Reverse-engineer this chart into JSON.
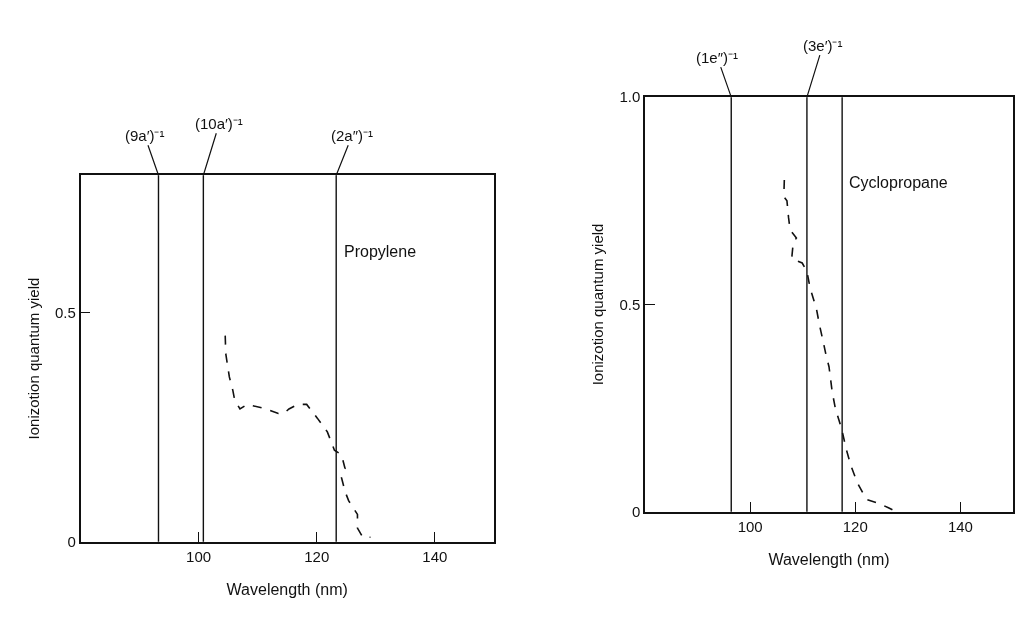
{
  "chart_data": [
    {
      "type": "line",
      "xlabel": "Wavelength (nm)",
      "ylabel": "Ionizotion quantum yield",
      "annotations": [
        "Propylene"
      ],
      "xlim": [
        80,
        150
      ],
      "ylim": [
        0,
        0.8
      ],
      "xticks": [
        100,
        120,
        140
      ],
      "yticks": [
        0,
        0.5
      ],
      "line_style": "dashed",
      "marker": "none",
      "ref_lines": [
        {
          "axis": "x",
          "value": 93.2,
          "label": "(9a′)⁻¹",
          "color": "#111111"
        },
        {
          "axis": "x",
          "value": 100.8,
          "label": "(10a′)⁻¹",
          "color": "#111111"
        },
        {
          "axis": "x",
          "value": 123.3,
          "label": "(2a″)⁻¹",
          "color": "#111111"
        }
      ],
      "series": [
        {
          "color": "#111111",
          "x": [
            104.5,
            104.6,
            105.2,
            105.8,
            106.1,
            107.0,
            108.2,
            111.5,
            113.5,
            114.4,
            115.3,
            116.8,
            118.3,
            120.1,
            121.8,
            122.4,
            123.0,
            124.2,
            124.8,
            124.2,
            124.8,
            125.4,
            126.9,
            126.9,
            127.8,
            129.1
          ],
          "values": [
            0.45,
            0.41,
            0.36,
            0.33,
            0.31,
            0.29,
            0.3,
            0.29,
            0.28,
            0.28,
            0.29,
            0.3,
            0.3,
            0.27,
            0.24,
            0.22,
            0.2,
            0.19,
            0.16,
            0.14,
            0.11,
            0.09,
            0.06,
            0.03,
            0.01,
            0.01
          ]
        }
      ]
    },
    {
      "type": "line",
      "xlabel": "Wavelength (nm)",
      "ylabel": "Ionizotion quantum yield",
      "annotations": [
        "Cyclopropane"
      ],
      "xlim": [
        80,
        150
      ],
      "ylim": [
        0,
        1.0
      ],
      "xticks": [
        100,
        120,
        140
      ],
      "yticks": [
        0,
        0.5,
        {
          "value": 1.0,
          "label": "1.0"
        }
      ],
      "line_style": "dashed",
      "marker": "none",
      "ref_lines": [
        {
          "axis": "x",
          "value": 96.4,
          "label": "(1e″)⁻¹",
          "color": "#111111"
        },
        {
          "axis": "x",
          "value": 110.8,
          "label": "(3e′)⁻¹",
          "color": "#111111"
        },
        {
          "axis": "x",
          "value": 117.5,
          "color": "#111111"
        }
      ],
      "series": [
        {
          "color": "#111111",
          "x": [
            106.5,
            106.4,
            107.0,
            107.3,
            107.6,
            108.8,
            108.2,
            107.9,
            109.9,
            110.8,
            111.4,
            112.6,
            113.2,
            113.9,
            114.4,
            115.0,
            115.6,
            116.2,
            117.4,
            118.3,
            119.2,
            120.4,
            122.1,
            124.5,
            126.3,
            127.8
          ],
          "values": [
            0.8,
            0.76,
            0.75,
            0.71,
            0.68,
            0.66,
            0.65,
            0.61,
            0.6,
            0.58,
            0.54,
            0.49,
            0.45,
            0.41,
            0.38,
            0.35,
            0.29,
            0.25,
            0.2,
            0.15,
            0.11,
            0.07,
            0.03,
            0.02,
            0.01,
            0.0
          ]
        }
      ]
    }
  ]
}
